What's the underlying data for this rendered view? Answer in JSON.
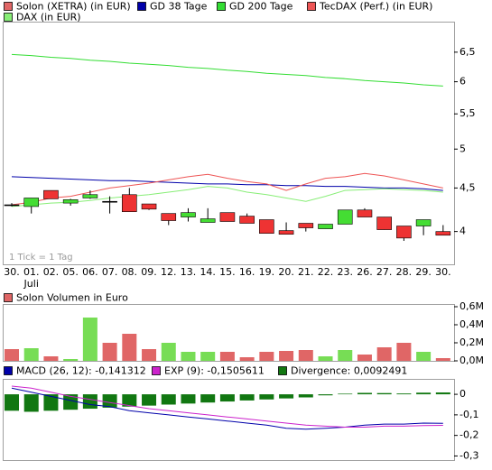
{
  "chart_data": [
    {
      "type": "candlestick",
      "log_scale": true,
      "annotation": "1 Tick = 1 Tag",
      "categories": [
        "30.",
        "01.",
        "02.",
        "05.",
        "06.",
        "07.",
        "08.",
        "09.",
        "12.",
        "13.",
        "14.",
        "15.",
        "16.",
        "19.",
        "20.",
        "21.",
        "22.",
        "23.",
        "26.",
        "27.",
        "28.",
        "29.",
        "30."
      ],
      "month_labels": [
        null,
        "Juli",
        null,
        null,
        null,
        null,
        null,
        null,
        null,
        null,
        null,
        null,
        null,
        null,
        null,
        null,
        null,
        null,
        null,
        null,
        null,
        null,
        null
      ],
      "ylim": [
        3.66,
        7.06
      ],
      "yticks": [
        4,
        {
          "value": 4.5,
          "label": "4,5"
        },
        5,
        {
          "value": 5.5,
          "label": "5,5"
        },
        6,
        {
          "value": 6.5,
          "label": "6,5"
        }
      ],
      "series": [
        {
          "name": "Solon (XETRA) (in EUR)",
          "type": "candlestick",
          "color": "#e06666",
          "up_color": "#44dd33",
          "down_color": "#ee3333",
          "flat_color": "#000000",
          "open": [
            4.3,
            4.28,
            4.47,
            4.32,
            4.38,
            4.34,
            4.42,
            4.31,
            4.2,
            4.16,
            4.1,
            4.21,
            4.17,
            4.13,
            4.01,
            4.09,
            4.03,
            4.08,
            4.24,
            4.16,
            4.06,
            4.06,
            4.0
          ],
          "high": [
            4.32,
            4.38,
            4.47,
            4.37,
            4.47,
            4.4,
            4.5,
            4.31,
            4.2,
            4.26,
            4.26,
            4.21,
            4.2,
            4.13,
            4.1,
            4.09,
            4.08,
            4.24,
            4.26,
            4.16,
            4.06,
            4.13,
            4.07
          ],
          "low": [
            4.28,
            4.2,
            4.37,
            4.29,
            4.37,
            4.2,
            4.22,
            4.24,
            4.07,
            4.11,
            4.1,
            4.11,
            4.09,
            3.98,
            3.97,
            4.0,
            4.03,
            4.08,
            4.16,
            4.02,
            3.9,
            3.96,
            3.96
          ],
          "close": [
            4.3,
            4.38,
            4.37,
            4.36,
            4.42,
            4.34,
            4.22,
            4.25,
            4.12,
            4.21,
            4.14,
            4.11,
            4.09,
            3.98,
            3.97,
            4.04,
            4.08,
            4.24,
            4.16,
            4.02,
            3.93,
            4.13,
            3.96
          ]
        },
        {
          "name": "GD 38 Tage",
          "type": "line",
          "color": "#0000aa",
          "values": [
            4.64,
            4.63,
            4.62,
            4.61,
            4.6,
            4.59,
            4.59,
            4.58,
            4.57,
            4.56,
            4.55,
            4.55,
            4.54,
            4.54,
            4.53,
            4.53,
            4.52,
            4.52,
            4.51,
            4.5,
            4.5,
            4.49,
            4.47
          ]
        },
        {
          "name": "GD 200 Tage",
          "type": "line",
          "color": "#33dd33",
          "values": [
            6.46,
            6.44,
            6.41,
            6.39,
            6.36,
            6.34,
            6.31,
            6.29,
            6.27,
            6.24,
            6.22,
            6.19,
            6.17,
            6.14,
            6.12,
            6.1,
            6.07,
            6.05,
            6.02,
            6.0,
            5.98,
            5.95,
            5.93
          ]
        },
        {
          "name": "TecDAX (Perf.) (in EUR)",
          "type": "line",
          "color": "#ee5555",
          "values": [
            4.3,
            4.33,
            4.38,
            4.4,
            4.45,
            4.5,
            4.53,
            4.56,
            4.6,
            4.64,
            4.67,
            4.62,
            4.58,
            4.55,
            4.47,
            4.55,
            4.62,
            4.64,
            4.68,
            4.65,
            4.6,
            4.55,
            4.5
          ]
        },
        {
          "name": "DAX (in EUR)",
          "type": "line",
          "color": "#88ee77",
          "values": [
            4.28,
            4.3,
            4.32,
            4.33,
            4.35,
            4.38,
            4.4,
            4.42,
            4.45,
            4.48,
            4.52,
            4.5,
            4.45,
            4.42,
            4.38,
            4.34,
            4.4,
            4.47,
            4.48,
            4.49,
            4.48,
            4.47,
            4.45
          ]
        }
      ]
    },
    {
      "type": "bar",
      "ylim": [
        0,
        630000
      ],
      "yticks": [
        {
          "value": 0,
          "label": "0,0M"
        },
        {
          "value": 200000,
          "label": "0,2M"
        },
        {
          "value": 400000,
          "label": "0,4M"
        },
        {
          "value": 600000,
          "label": "0,6M"
        }
      ],
      "series": [
        {
          "name": "Solon Volumen in Euro",
          "type": "bar",
          "color": "#e06666",
          "values": [
            130000,
            140000,
            50000,
            20000,
            480000,
            200000,
            300000,
            130000,
            200000,
            100000,
            100000,
            100000,
            40000,
            100000,
            110000,
            120000,
            50000,
            120000,
            70000,
            150000,
            200000,
            100000,
            30000
          ],
          "colors": [
            "#e06666",
            "#77dd55",
            "#e06666",
            "#77dd55",
            "#77dd55",
            "#e06666",
            "#e06666",
            "#e06666",
            "#77dd55",
            "#77dd55",
            "#77dd55",
            "#e06666",
            "#e06666",
            "#e06666",
            "#e06666",
            "#e06666",
            "#77dd55",
            "#77dd55",
            "#e06666",
            "#e06666",
            "#e06666",
            "#77dd55",
            "#e06666"
          ]
        }
      ]
    },
    {
      "type": "combo",
      "ylim": [
        -0.32,
        0.075
      ],
      "yticks": [
        {
          "value": -0.3,
          "label": "-0,3"
        },
        {
          "value": -0.2,
          "label": "-0,2"
        },
        {
          "value": -0.1,
          "label": "-0,1"
        },
        0
      ],
      "series": [
        {
          "name": "MACD (26, 12): -0,141312",
          "type": "line",
          "color": "#0000aa",
          "values": [
            0.03,
            0.01,
            -0.01,
            -0.03,
            -0.05,
            -0.06,
            -0.08,
            -0.09,
            -0.1,
            -0.11,
            -0.12,
            -0.13,
            -0.14,
            -0.15,
            -0.165,
            -0.17,
            -0.165,
            -0.16,
            -0.15,
            -0.145,
            -0.145,
            -0.14,
            -0.141
          ]
        },
        {
          "name": "EXP (9): -0,1505611",
          "type": "line",
          "color": "#cc22cc",
          "values": [
            0.04,
            0.03,
            0.01,
            -0.01,
            -0.025,
            -0.04,
            -0.055,
            -0.07,
            -0.08,
            -0.09,
            -0.1,
            -0.11,
            -0.12,
            -0.13,
            -0.14,
            -0.15,
            -0.155,
            -0.16,
            -0.16,
            -0.155,
            -0.155,
            -0.152,
            -0.151
          ]
        },
        {
          "name": "Divergence: 0,0092491",
          "type": "bar",
          "color": "#117711",
          "values": [
            -0.08,
            -0.085,
            -0.08,
            -0.075,
            -0.07,
            -0.065,
            -0.06,
            -0.055,
            -0.05,
            -0.045,
            -0.04,
            -0.035,
            -0.03,
            -0.025,
            -0.02,
            -0.015,
            -0.005,
            0.003,
            0.007,
            0.006,
            0.004,
            0.008,
            0.009
          ]
        }
      ]
    }
  ]
}
